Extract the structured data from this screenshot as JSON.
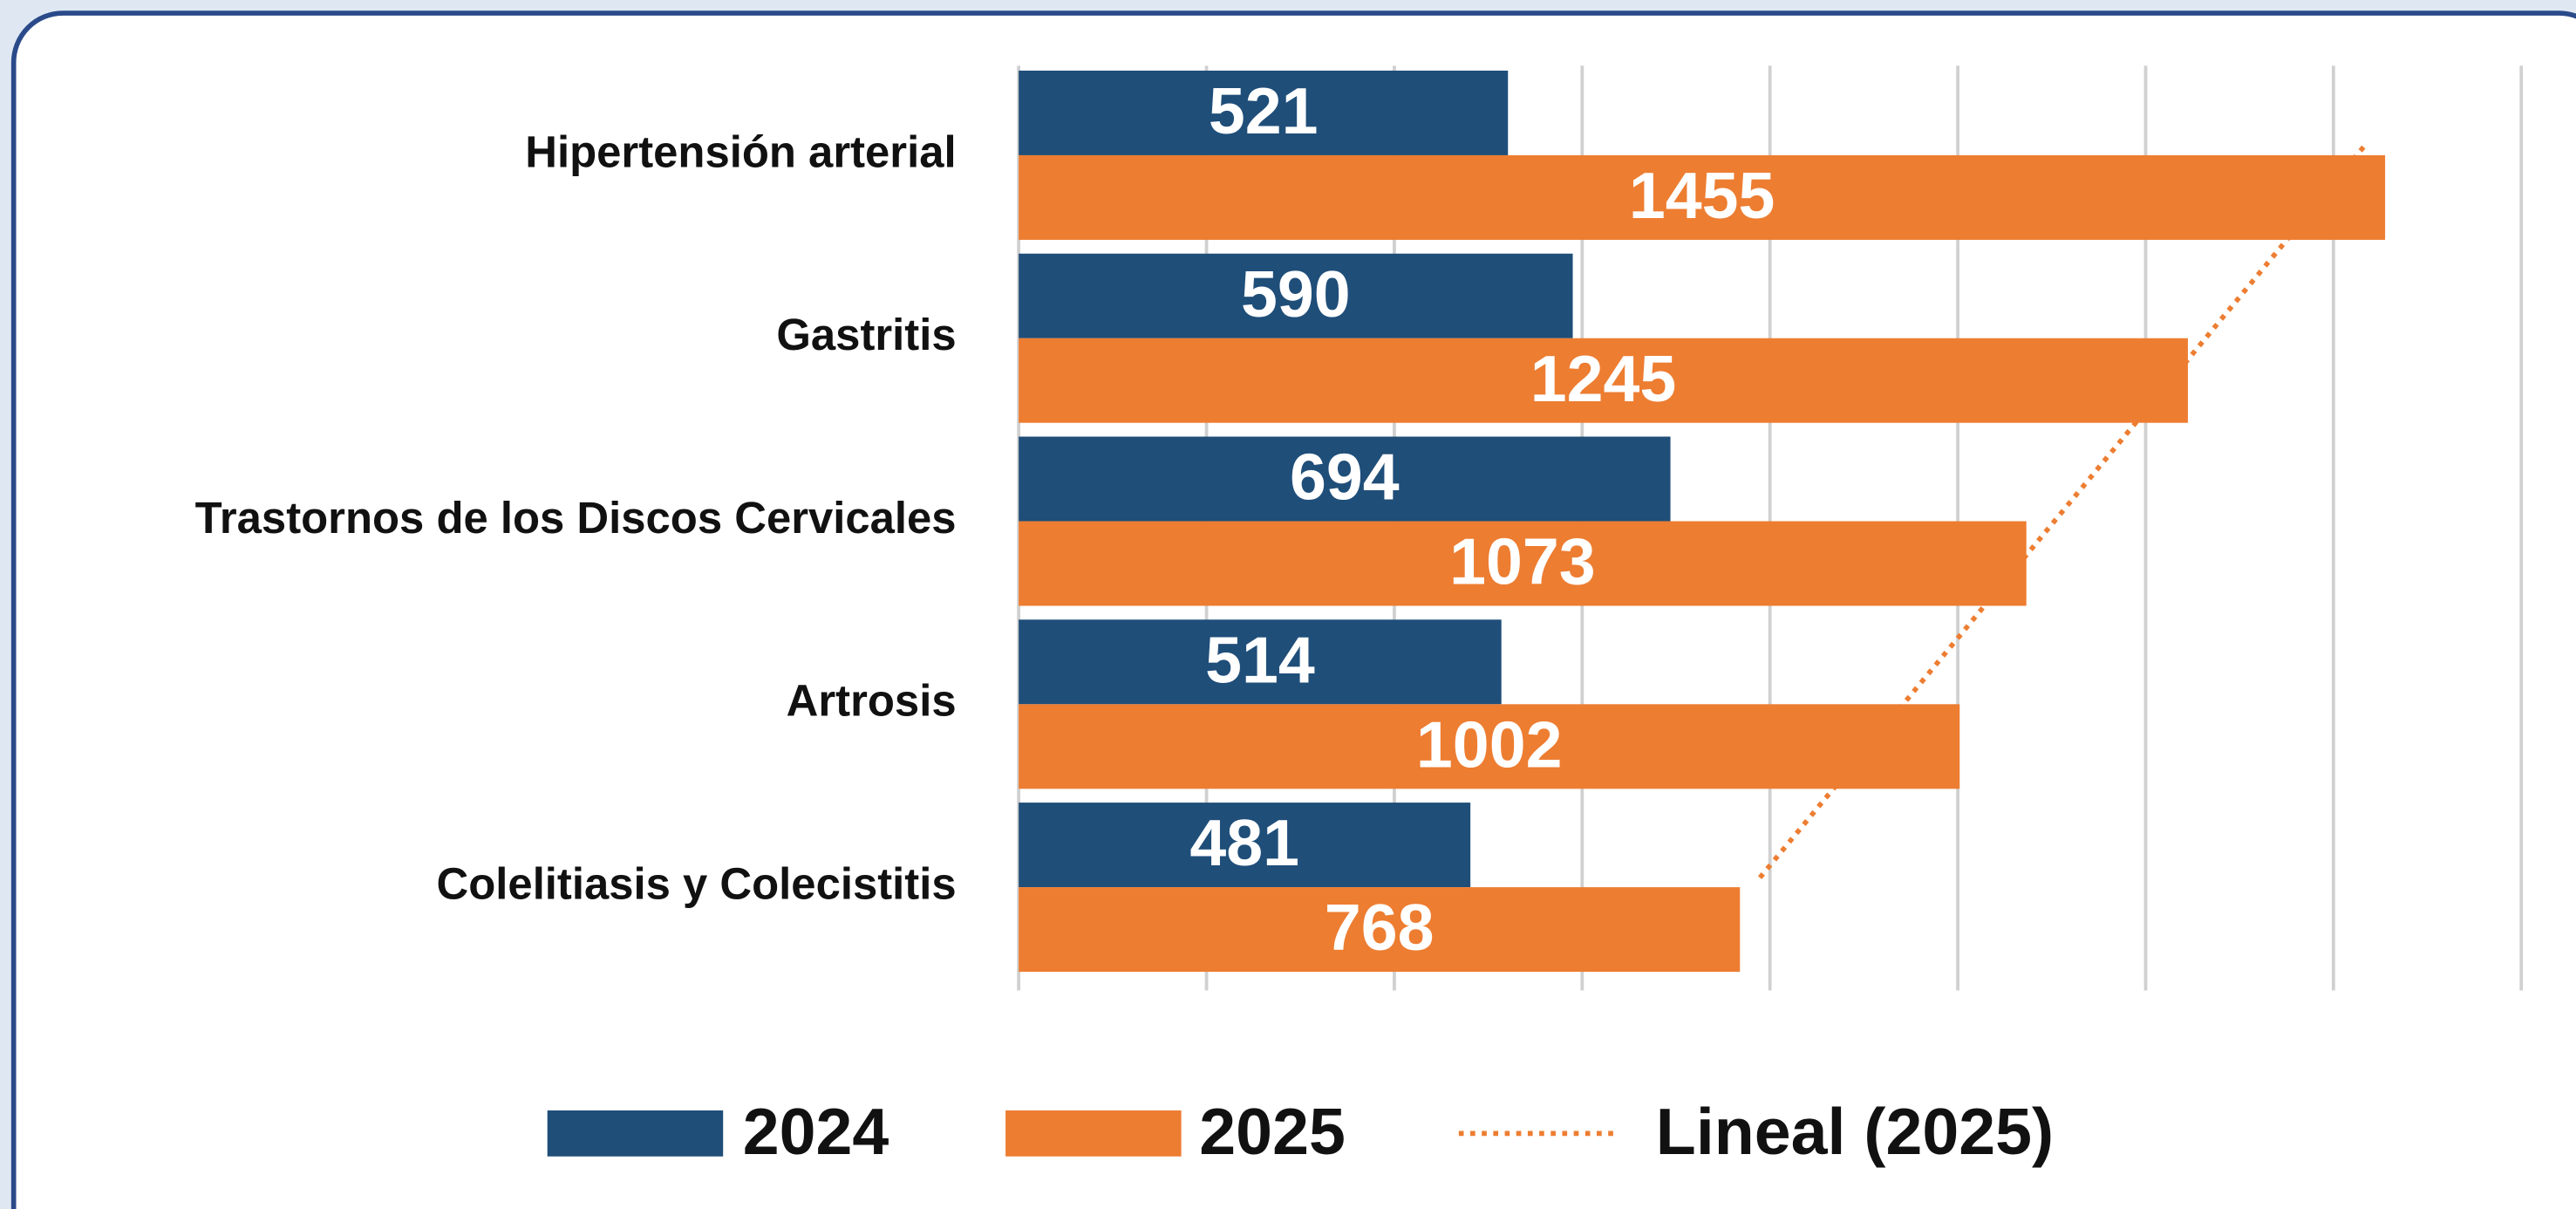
{
  "chart_data": {
    "type": "hbar",
    "categories": [
      "Hipertensión arterial",
      "Gastritis",
      "Trastornos de los Discos Cervicales",
      "Artrosis",
      "Colelitiasis y Colecistitis"
    ],
    "series": [
      {
        "name": "2024",
        "color": "#1f4e79",
        "values": [
          521,
          590,
          694,
          514,
          481
        ]
      },
      {
        "name": "2025",
        "color": "#ed7d31",
        "values": [
          1455,
          1245,
          1073,
          1002,
          768
        ]
      }
    ],
    "trendline": {
      "name": "Lineal (2025)",
      "series": 1,
      "color": "#ed7d31"
    },
    "xlim": [
      0,
      1600
    ],
    "xticks": [
      0,
      200,
      400,
      600,
      800,
      1000,
      1200,
      1400,
      1600
    ],
    "grid": true,
    "legend": "bottom"
  }
}
